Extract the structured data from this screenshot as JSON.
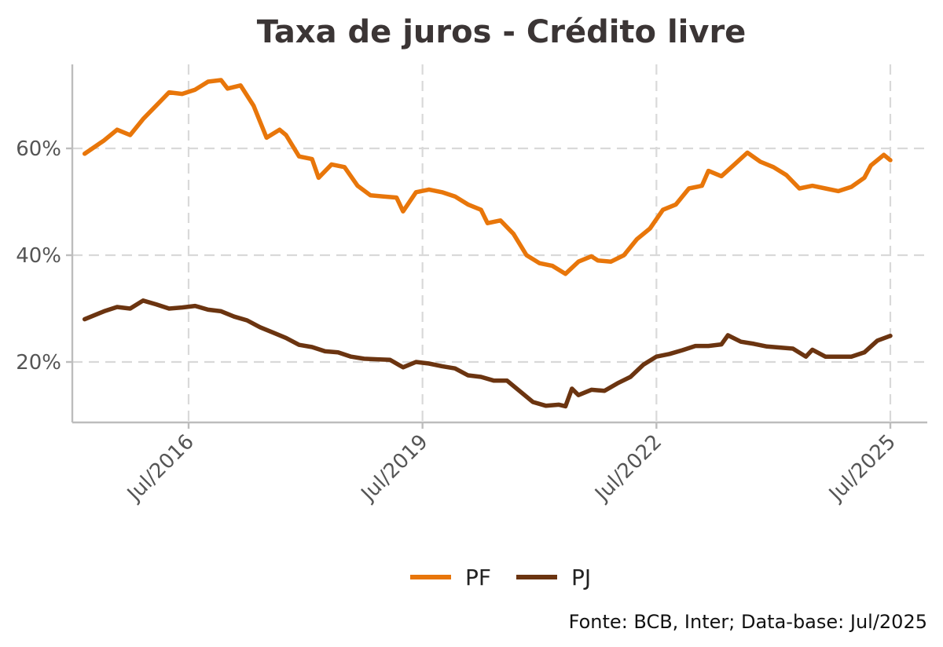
{
  "chart_data": {
    "type": "line",
    "title": "Taxa de juros - Crédito livre",
    "caption": "Fonte: BCB, Inter; Data-base: Jul/2025",
    "xlabel": "",
    "ylabel": "",
    "x_range": [
      "2015-03",
      "2025-07"
    ],
    "ylim": [
      8,
      75
    ],
    "y_ticks": [
      20,
      40,
      60
    ],
    "y_tick_labels": [
      "20%",
      "40%",
      "60%"
    ],
    "x_ticks": [
      "2016-07",
      "2019-07",
      "2022-07",
      "2025-07"
    ],
    "x_tick_labels": [
      "Jul/2016",
      "Jul/2019",
      "Jul/2022",
      "Jul/2025"
    ],
    "grid": true,
    "legend_position": "bottom",
    "colors": {
      "PF": "#e8760a",
      "PJ": "#6b3410",
      "axis": "#bdbdbd",
      "grid": "#d9d9d9"
    },
    "series": [
      {
        "name": "PF",
        "color": "#e8760a",
        "points": [
          [
            "2015-03",
            59.0
          ],
          [
            "2015-06",
            61.5
          ],
          [
            "2015-08",
            63.5
          ],
          [
            "2015-10",
            62.5
          ],
          [
            "2015-12",
            65.5
          ],
          [
            "2016-02",
            68.0
          ],
          [
            "2016-04",
            70.5
          ],
          [
            "2016-06",
            70.2
          ],
          [
            "2016-08",
            71.0
          ],
          [
            "2016-10",
            72.5
          ],
          [
            "2016-12",
            72.8
          ],
          [
            "2017-01",
            71.2
          ],
          [
            "2017-03",
            71.8
          ],
          [
            "2017-05",
            68.0
          ],
          [
            "2017-07",
            62.0
          ],
          [
            "2017-09",
            63.5
          ],
          [
            "2017-10",
            62.5
          ],
          [
            "2017-12",
            58.5
          ],
          [
            "2018-02",
            58.0
          ],
          [
            "2018-03",
            54.5
          ],
          [
            "2018-05",
            57.0
          ],
          [
            "2018-07",
            56.5
          ],
          [
            "2018-09",
            53.0
          ],
          [
            "2018-11",
            51.2
          ],
          [
            "2019-01",
            51.0
          ],
          [
            "2019-03",
            50.8
          ],
          [
            "2019-04",
            48.2
          ],
          [
            "2019-06",
            51.8
          ],
          [
            "2019-08",
            52.3
          ],
          [
            "2019-10",
            51.8
          ],
          [
            "2019-12",
            51.0
          ],
          [
            "2020-02",
            49.5
          ],
          [
            "2020-04",
            48.5
          ],
          [
            "2020-05",
            46.0
          ],
          [
            "2020-07",
            46.5
          ],
          [
            "2020-09",
            44.0
          ],
          [
            "2020-11",
            40.0
          ],
          [
            "2021-01",
            38.5
          ],
          [
            "2021-03",
            38.0
          ],
          [
            "2021-05",
            36.5
          ],
          [
            "2021-07",
            38.8
          ],
          [
            "2021-09",
            39.8
          ],
          [
            "2021-10",
            39.0
          ],
          [
            "2021-12",
            38.8
          ],
          [
            "2022-02",
            40.0
          ],
          [
            "2022-04",
            43.0
          ],
          [
            "2022-06",
            45.0
          ],
          [
            "2022-08",
            48.5
          ],
          [
            "2022-10",
            49.5
          ],
          [
            "2022-12",
            52.5
          ],
          [
            "2023-02",
            53.0
          ],
          [
            "2023-03",
            55.8
          ],
          [
            "2023-05",
            54.8
          ],
          [
            "2023-07",
            57.0
          ],
          [
            "2023-09",
            59.2
          ],
          [
            "2023-11",
            57.5
          ],
          [
            "2024-01",
            56.5
          ],
          [
            "2024-03",
            55.0
          ],
          [
            "2024-05",
            52.5
          ],
          [
            "2024-07",
            53.0
          ],
          [
            "2024-09",
            52.5
          ],
          [
            "2024-11",
            52.0
          ],
          [
            "2025-01",
            52.8
          ],
          [
            "2025-03",
            54.5
          ],
          [
            "2025-04",
            56.8
          ],
          [
            "2025-06",
            58.8
          ],
          [
            "2025-07",
            57.8
          ]
        ]
      },
      {
        "name": "PJ",
        "color": "#6b3410",
        "points": [
          [
            "2015-03",
            28.0
          ],
          [
            "2015-06",
            29.5
          ],
          [
            "2015-08",
            30.3
          ],
          [
            "2015-10",
            30.0
          ],
          [
            "2015-12",
            31.5
          ],
          [
            "2016-02",
            30.8
          ],
          [
            "2016-04",
            30.0
          ],
          [
            "2016-06",
            30.2
          ],
          [
            "2016-08",
            30.5
          ],
          [
            "2016-10",
            29.8
          ],
          [
            "2016-12",
            29.5
          ],
          [
            "2017-02",
            28.5
          ],
          [
            "2017-04",
            27.8
          ],
          [
            "2017-06",
            26.5
          ],
          [
            "2017-08",
            25.5
          ],
          [
            "2017-10",
            24.5
          ],
          [
            "2017-12",
            23.2
          ],
          [
            "2018-02",
            22.8
          ],
          [
            "2018-04",
            22.0
          ],
          [
            "2018-06",
            21.8
          ],
          [
            "2018-08",
            21.0
          ],
          [
            "2018-10",
            20.6
          ],
          [
            "2018-12",
            20.5
          ],
          [
            "2019-02",
            20.4
          ],
          [
            "2019-04",
            19.0
          ],
          [
            "2019-06",
            20.0
          ],
          [
            "2019-08",
            19.7
          ],
          [
            "2019-10",
            19.2
          ],
          [
            "2019-12",
            18.8
          ],
          [
            "2020-02",
            17.5
          ],
          [
            "2020-04",
            17.2
          ],
          [
            "2020-06",
            16.5
          ],
          [
            "2020-08",
            16.5
          ],
          [
            "2020-10",
            14.5
          ],
          [
            "2020-12",
            12.5
          ],
          [
            "2021-02",
            11.8
          ],
          [
            "2021-04",
            12.0
          ],
          [
            "2021-05",
            11.7
          ],
          [
            "2021-06",
            15.0
          ],
          [
            "2021-07",
            13.8
          ],
          [
            "2021-09",
            14.8
          ],
          [
            "2021-11",
            14.6
          ],
          [
            "2022-01",
            16.0
          ],
          [
            "2022-03",
            17.2
          ],
          [
            "2022-05",
            19.5
          ],
          [
            "2022-07",
            21.0
          ],
          [
            "2022-09",
            21.5
          ],
          [
            "2022-11",
            22.2
          ],
          [
            "2023-01",
            23.0
          ],
          [
            "2023-03",
            23.0
          ],
          [
            "2023-05",
            23.3
          ],
          [
            "2023-06",
            25.0
          ],
          [
            "2023-08",
            23.8
          ],
          [
            "2023-10",
            23.4
          ],
          [
            "2023-12",
            22.9
          ],
          [
            "2024-02",
            22.7
          ],
          [
            "2024-04",
            22.5
          ],
          [
            "2024-06",
            21.0
          ],
          [
            "2024-07",
            22.3
          ],
          [
            "2024-09",
            21.0
          ],
          [
            "2024-11",
            21.0
          ],
          [
            "2025-01",
            21.0
          ],
          [
            "2025-03",
            21.8
          ],
          [
            "2025-05",
            24.0
          ],
          [
            "2025-07",
            24.9
          ]
        ]
      }
    ]
  }
}
